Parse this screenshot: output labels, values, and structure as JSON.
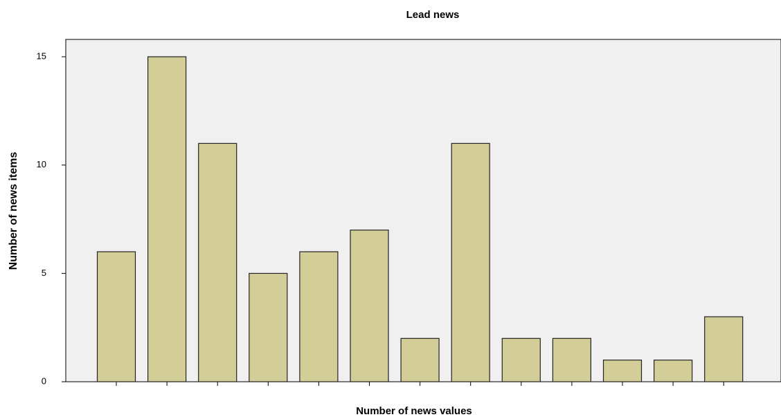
{
  "chart_data": {
    "type": "bar",
    "title": "Lead news",
    "x_label": "Number of news values",
    "y_label": "Number of news items",
    "categories": [
      null,
      null,
      null,
      null,
      null,
      null,
      null,
      null,
      null,
      null,
      null,
      null,
      null
    ],
    "values": [
      6,
      15,
      11,
      5,
      6,
      7,
      2,
      11,
      2,
      2,
      1,
      1,
      3
    ],
    "color": "#d3ce97",
    "ylim": [
      0,
      15.8
    ],
    "yticks": [
      0,
      5,
      10,
      15
    ],
    "grid": false
  }
}
